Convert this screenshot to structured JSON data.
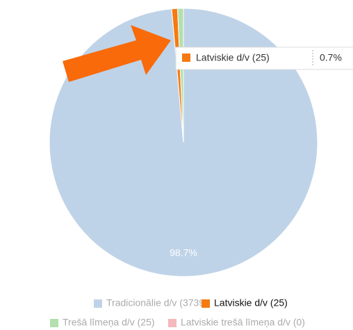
{
  "chart_data": {
    "type": "pie",
    "categories": [
      "Tradicionālie d/v (3739)",
      "Latviskie d/v (25)",
      "Trešā līmeņa d/v (25)",
      "Latviskie trešā līmeņa d/v (0)"
    ],
    "values": [
      98.7,
      0.7,
      0.7,
      0
    ],
    "value_labels": [
      "98.7%",
      "0.7%",
      null,
      null
    ],
    "colors": [
      "#bfd3e8",
      "#f57a12",
      "#b3e0ac",
      "#f4b8bd"
    ],
    "highlighted": 1
  }
}
